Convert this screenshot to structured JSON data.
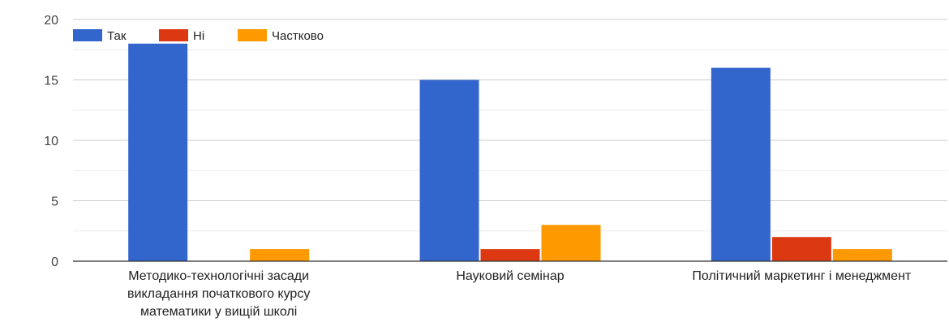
{
  "chart_data": {
    "type": "bar",
    "categories": [
      "Методико-технологічні засади викладання початкового курсу математики у вищій школі",
      "Науковий семінар",
      "Політичний маркетинг і менеджмент"
    ],
    "category_lines": [
      [
        "Методико-технологічні засади",
        "викладання початкового курсу",
        "математики у вищій школі"
      ],
      [
        "Науковий семінар"
      ],
      [
        "Політичний маркетинг і менеджмент"
      ]
    ],
    "series": [
      {
        "name": "Так",
        "color": "#3366cc",
        "values": [
          18,
          15,
          16
        ]
      },
      {
        "name": "Ні",
        "color": "#dc3912",
        "values": [
          0,
          1,
          2
        ]
      },
      {
        "name": "Частково",
        "color": "#ff9900",
        "values": [
          1,
          3,
          1
        ]
      }
    ],
    "y_ticks": [
      "0",
      "5",
      "10",
      "15",
      "20"
    ],
    "ylim": [
      0,
      20
    ],
    "legend_position": "top-left",
    "grid": true
  }
}
